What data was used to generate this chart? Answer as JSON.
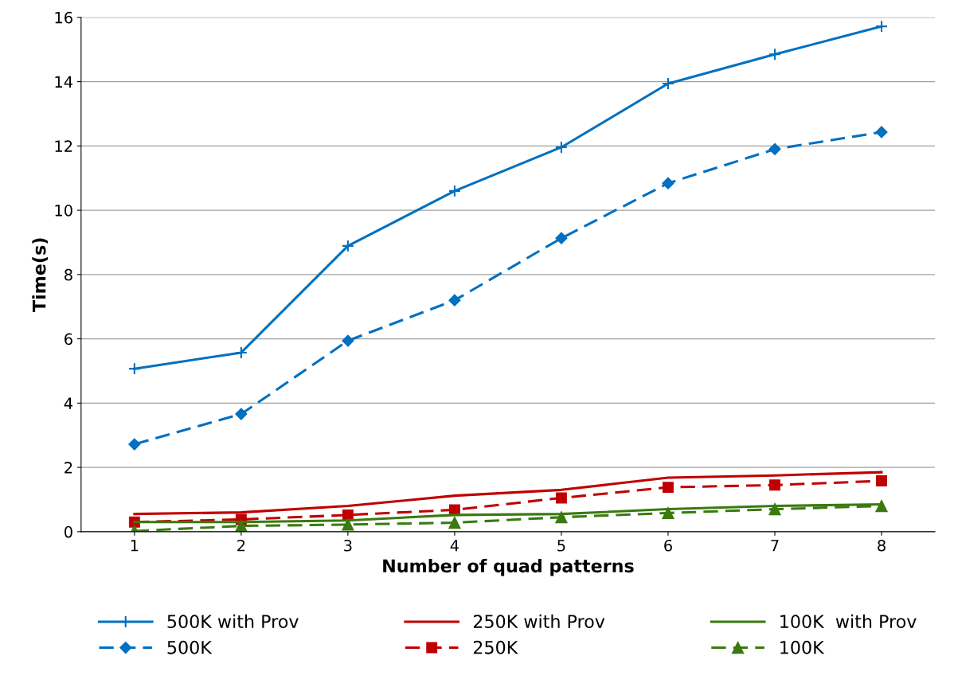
{
  "chart_data": {
    "type": "line",
    "xlabel": "Number of quad patterns",
    "ylabel": "Time(s)",
    "categories": [
      "1",
      "2",
      "3",
      "4",
      "5",
      "6",
      "7",
      "8"
    ],
    "ylim": [
      0,
      16
    ],
    "yticks": [
      0,
      2,
      4,
      6,
      8,
      10,
      12,
      14,
      16
    ],
    "grid": "y",
    "legend": "bottom",
    "series": [
      {
        "name": "500K with Prov",
        "color": "#0070c0",
        "marker": "cross",
        "line_style": "solid",
        "values": [
          5.07,
          5.57,
          8.89,
          10.6,
          11.96,
          13.94,
          14.85,
          15.72
        ]
      },
      {
        "name": "500K",
        "color": "#0070c0",
        "marker": "diamond",
        "line_style": "dashed",
        "values": [
          2.72,
          3.66,
          5.94,
          7.2,
          9.13,
          10.84,
          11.9,
          12.43
        ]
      },
      {
        "name": "250K with Prov",
        "color": "#c00000",
        "marker": "none",
        "line_style": "solid",
        "values": [
          0.55,
          0.6,
          0.8,
          1.12,
          1.3,
          1.68,
          1.75,
          1.85
        ]
      },
      {
        "name": "250K",
        "color": "#c00000",
        "marker": "square",
        "line_style": "dashed",
        "values": [
          0.3,
          0.38,
          0.52,
          0.68,
          1.05,
          1.38,
          1.45,
          1.58
        ]
      },
      {
        "name": "100K  with Prov",
        "color": "#3a7a10",
        "marker": "none",
        "line_style": "solid",
        "values": [
          0.3,
          0.3,
          0.35,
          0.52,
          0.55,
          0.7,
          0.8,
          0.85
        ]
      },
      {
        "name": "100K",
        "color": "#3a7a10",
        "marker": "triangle",
        "line_style": "dashed",
        "values": [
          0.02,
          0.18,
          0.22,
          0.28,
          0.45,
          0.58,
          0.7,
          0.8
        ]
      }
    ]
  }
}
